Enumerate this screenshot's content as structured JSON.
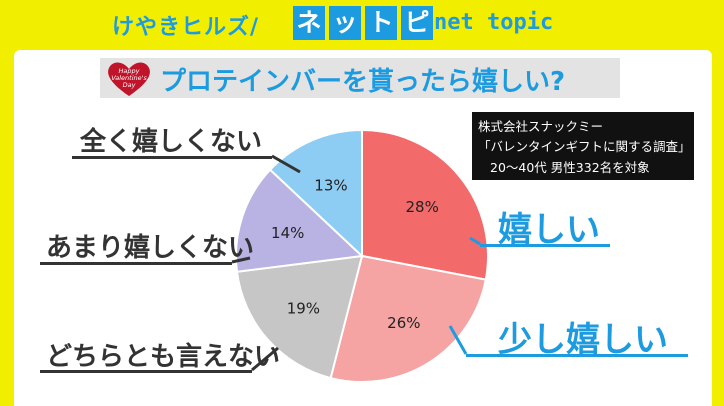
{
  "header": {
    "brand": "けやきヒルズ/",
    "tiles": [
      "ネ",
      "ッ",
      "ト",
      "ピ"
    ],
    "sub": "net topic"
  },
  "title": "プロテインバーを貰ったら嬉しい?",
  "badge": {
    "lines": [
      "Happy",
      "Valentine's",
      "Day"
    ]
  },
  "source": {
    "line1": "株式会社スナックミー",
    "line2": "「バレンタインギフトに関する調査」",
    "line3": "20～40代 男性332名を対象"
  },
  "chart_data": {
    "type": "pie",
    "unit": "%",
    "slices": [
      {
        "label": "嬉しい",
        "value": 28,
        "value_label": "28%",
        "color": "#f36a6a"
      },
      {
        "label": "少し嬉しい",
        "value": 26,
        "value_label": "26%",
        "color": "#f5a3a3"
      },
      {
        "label": "どちらとも言えない",
        "value": 19,
        "value_label": "19%",
        "color": "#c6c6c6"
      },
      {
        "label": "あまり嬉しくない",
        "value": 14,
        "value_label": "14%",
        "color": "#b8b3e3"
      },
      {
        "label": "全く嬉しくない",
        "value": 13,
        "value_label": "13%",
        "color": "#8ecdf3"
      }
    ],
    "start_angle_deg": 0,
    "direction": "clockwise"
  },
  "colors": {
    "accent": "#1d9be0",
    "background": "#f2ee00",
    "heart": "#c0142b"
  }
}
